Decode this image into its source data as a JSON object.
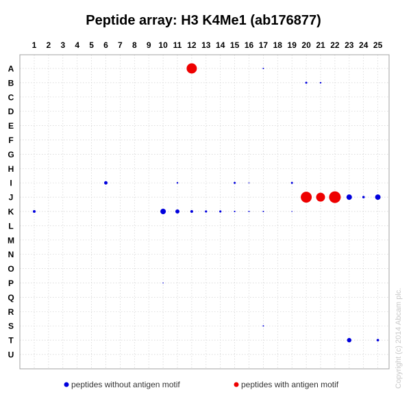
{
  "chart_data": {
    "type": "scatter",
    "title": "Peptide array:  H3 K4Me1 (ab176877)",
    "columns": [
      "1",
      "2",
      "3",
      "4",
      "5",
      "6",
      "7",
      "8",
      "9",
      "10",
      "11",
      "12",
      "13",
      "14",
      "15",
      "16",
      "17",
      "18",
      "19",
      "20",
      "21",
      "22",
      "23",
      "24",
      "25"
    ],
    "rows": [
      "A",
      "B",
      "C",
      "D",
      "E",
      "F",
      "G",
      "H",
      "I",
      "J",
      "K",
      "L",
      "M",
      "N",
      "O",
      "P",
      "Q",
      "R",
      "S",
      "T",
      "U"
    ],
    "series": [
      {
        "name": "peptides without antigen motif",
        "color": "#0000dd",
        "points": [
          {
            "row": "A",
            "col": 17,
            "size": 1
          },
          {
            "row": "B",
            "col": 20,
            "size": 1.5
          },
          {
            "row": "B",
            "col": 21,
            "size": 1.2
          },
          {
            "row": "I",
            "col": 6,
            "size": 2.5
          },
          {
            "row": "I",
            "col": 11,
            "size": 1.2
          },
          {
            "row": "I",
            "col": 15,
            "size": 1.5
          },
          {
            "row": "I",
            "col": 16,
            "size": 0.8
          },
          {
            "row": "I",
            "col": 19,
            "size": 1.5
          },
          {
            "row": "J",
            "col": 23,
            "size": 4
          },
          {
            "row": "J",
            "col": 24,
            "size": 1.8
          },
          {
            "row": "J",
            "col": 25,
            "size": 4
          },
          {
            "row": "K",
            "col": 1,
            "size": 2
          },
          {
            "row": "K",
            "col": 10,
            "size": 4
          },
          {
            "row": "K",
            "col": 11,
            "size": 3
          },
          {
            "row": "K",
            "col": 12,
            "size": 2
          },
          {
            "row": "K",
            "col": 13,
            "size": 1.6
          },
          {
            "row": "K",
            "col": 14,
            "size": 1.6
          },
          {
            "row": "K",
            "col": 15,
            "size": 1.1
          },
          {
            "row": "K",
            "col": 16,
            "size": 1
          },
          {
            "row": "K",
            "col": 17,
            "size": 1
          },
          {
            "row": "K",
            "col": 19,
            "size": 0.8
          },
          {
            "row": "P",
            "col": 10,
            "size": 0.8
          },
          {
            "row": "S",
            "col": 17,
            "size": 1
          },
          {
            "row": "T",
            "col": 23,
            "size": 3.2
          },
          {
            "row": "T",
            "col": 25,
            "size": 1.8
          }
        ]
      },
      {
        "name": "peptides with antigen motif",
        "color": "#ee0000",
        "points": [
          {
            "row": "A",
            "col": 12,
            "size": 7.5
          },
          {
            "row": "J",
            "col": 20,
            "size": 8
          },
          {
            "row": "J",
            "col": 21,
            "size": 6.5
          },
          {
            "row": "J",
            "col": 22,
            "size": 8.5
          }
        ]
      }
    ],
    "grid": true,
    "legend_position": "bottom"
  },
  "copyright": "Copyright (c) 2014 Abcam plc."
}
